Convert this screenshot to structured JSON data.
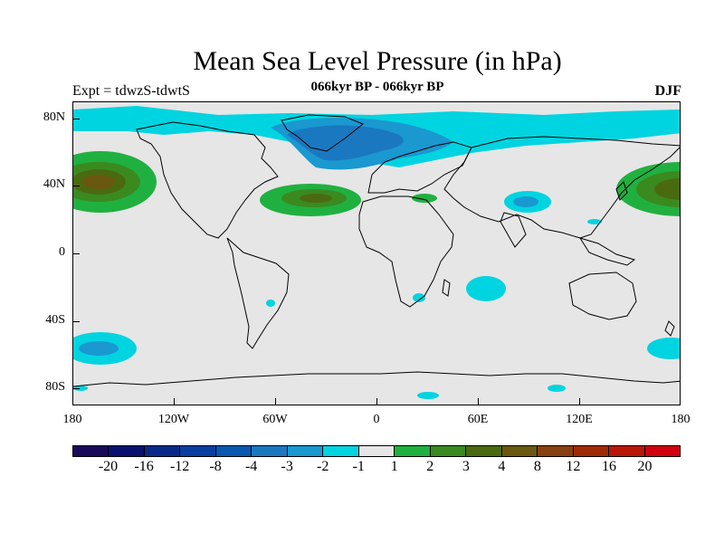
{
  "title": "Mean Sea Level Pressure (in hPa)",
  "subtitle": "066kyr BP - 066kyr BP",
  "expt_label": "Expt = tdwzS-tdwtS",
  "season": "DJF",
  "map": {
    "lon_range": [
      -180,
      180
    ],
    "lat_range": [
      -90,
      90
    ],
    "x_ticks": [
      {
        "label": "180",
        "lon": -180
      },
      {
        "label": "120W",
        "lon": -120
      },
      {
        "label": "60W",
        "lon": -60
      },
      {
        "label": "0",
        "lon": 0
      },
      {
        "label": "60E",
        "lon": 60
      },
      {
        "label": "120E",
        "lon": 120
      },
      {
        "label": "180",
        "lon": 180
      }
    ],
    "y_ticks": [
      {
        "label": "80N",
        "lat": 80
      },
      {
        "label": "40N",
        "lat": 40
      },
      {
        "label": "0",
        "lat": 0
      },
      {
        "label": "40S",
        "lat": -40
      },
      {
        "label": "80S",
        "lat": -80
      }
    ],
    "background_color": "#e6e6e6"
  },
  "colorbar": {
    "colors": [
      "#1a0a5a",
      "#0a1070",
      "#0a2a8a",
      "#0a3ea0",
      "#0a58b0",
      "#1a78c0",
      "#1a98d0",
      "#00d4e0",
      "#e6e6e6",
      "#20b040",
      "#3a8a20",
      "#4a6a10",
      "#6a5810",
      "#884010",
      "#a02a08",
      "#b81808",
      "#d00010"
    ],
    "labels": [
      "-20",
      "-16",
      "-12",
      "-8",
      "-4",
      "-3",
      "-2",
      "-1",
      "1",
      "2",
      "3",
      "4",
      "8",
      "12",
      "16",
      "20"
    ]
  }
}
